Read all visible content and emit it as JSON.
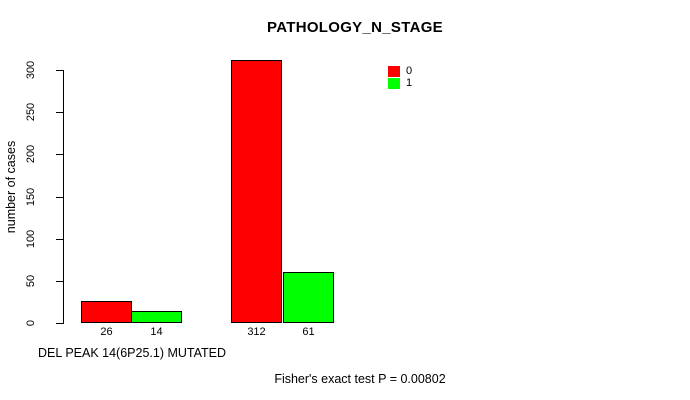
{
  "chart_data": {
    "type": "bar",
    "title": "PATHOLOGY_N_STAGE",
    "xlabel": "DEL PEAK 14(6P25.1) MUTATED",
    "ylabel": "number of cases",
    "ylim": [
      0,
      300
    ],
    "yticks": [
      0,
      50,
      100,
      150,
      200,
      250,
      300
    ],
    "grid": false,
    "legend_position": "top-right",
    "background": "#ffffff",
    "bar_border_color": "#000000",
    "series": [
      {
        "name": "0",
        "color": "#ff0000",
        "values": [
          26,
          312
        ]
      },
      {
        "name": "1",
        "color": "#00ff00",
        "values": [
          14,
          61
        ]
      }
    ],
    "bar_value_labels": [
      "26",
      "14",
      "312",
      "61"
    ],
    "annotation": "Fisher's exact test P = 0.00802"
  }
}
